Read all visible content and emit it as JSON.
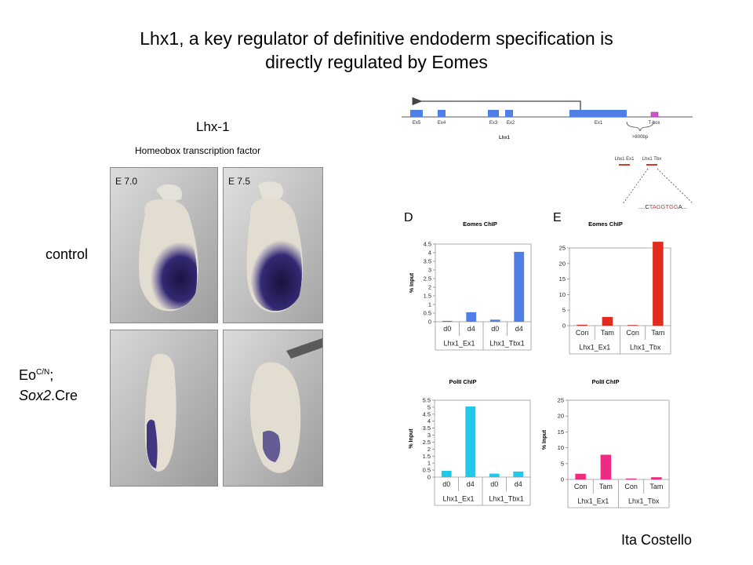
{
  "slide": {
    "title_line1": "Lhx1, a key regulator of definitive endoderm specification is",
    "title_line2": "directly regulated by Eomes",
    "credit": "Ita Costello"
  },
  "figure": {
    "gene": "Lhx-1",
    "subtitle": "Homeobox transcription factor",
    "stage_left": "E 7.0",
    "stage_right": "E 7.5",
    "row_control": "control",
    "row_mutant_prefix": "Eo",
    "row_mutant_sup": "C/N",
    "row_mutant_semicolon": ";",
    "row_mutant_italic": "Sox2",
    "row_mutant_suffix": ".Cre"
  },
  "gene_map": {
    "exons": [
      "Ex5",
      "Ex4",
      "Ex3",
      "Ex2",
      "Ex1"
    ],
    "tbox": "T-box",
    "gene_name": "Lhx1",
    "distance": ">800bp",
    "primer_ex1": "Lhx1 Ex1",
    "primer_tbx": "Lhx1 Tbx",
    "seq_prefix": "....C",
    "seq_motif": "TAGGTGG",
    "seq_suffix": "A...",
    "colors": {
      "exon": "#4f7fe6",
      "tbox": "#cc55cc",
      "primer": "#d23a2a",
      "motif": "#d23a2a"
    }
  },
  "panel_letters": {
    "left": "D",
    "right": "E"
  },
  "chart_data": [
    {
      "type": "bar",
      "title": "Eomes ChIP",
      "ylabel": "% Input",
      "ylim": [
        0,
        4.5
      ],
      "yticks": [
        "0",
        "0.5",
        "1",
        "1.5",
        "2",
        "2.5",
        "3",
        "3.5",
        "4",
        "4.5"
      ],
      "categories": [
        "d0",
        "d4",
        "d0",
        "d4"
      ],
      "groups": [
        "Lhx1_Ex1",
        "Lhx1_Tbx1"
      ],
      "values": [
        0.05,
        0.55,
        0.12,
        4.05
      ],
      "color": "#4f7fe6"
    },
    {
      "type": "bar",
      "title": "Eomes ChIP",
      "ylabel": "",
      "ylim": [
        0,
        25
      ],
      "yticks": [
        "0",
        "5",
        "10",
        "15",
        "20",
        "25"
      ],
      "categories": [
        "Con",
        "Tam",
        "Con",
        "Tam"
      ],
      "groups": [
        "Lhx1_Ex1",
        "Lhx1_Tbx"
      ],
      "values": [
        0.3,
        2.8,
        0.2,
        27
      ],
      "color": "#e02b1e"
    },
    {
      "type": "bar",
      "title": "PolII ChIP",
      "ylabel": "% Input",
      "ylim": [
        0,
        5.5
      ],
      "yticks": [
        "0",
        "0.5",
        "1",
        "1.5",
        "2",
        "2.5",
        "3",
        "3.5",
        "4",
        "4.5",
        "5",
        "5.5"
      ],
      "categories": [
        "d0",
        "d4",
        "d0",
        "d4"
      ],
      "groups": [
        "Lhx1_Ex1",
        "Lhx1_Tbx1"
      ],
      "values": [
        0.45,
        5.05,
        0.25,
        0.4
      ],
      "color": "#22c8e8"
    },
    {
      "type": "bar",
      "title": "PolII ChIP",
      "ylabel": "% Input",
      "ylim": [
        0,
        25
      ],
      "yticks": [
        "0",
        "5",
        "10",
        "15",
        "20",
        "25"
      ],
      "categories": [
        "Con",
        "Tam",
        "Con",
        "Tam"
      ],
      "groups": [
        "Lhx1_Ex1",
        "Lhx1_Tbx"
      ],
      "values": [
        1.8,
        7.8,
        0.3,
        0.7
      ],
      "color": "#ee2b82"
    }
  ]
}
